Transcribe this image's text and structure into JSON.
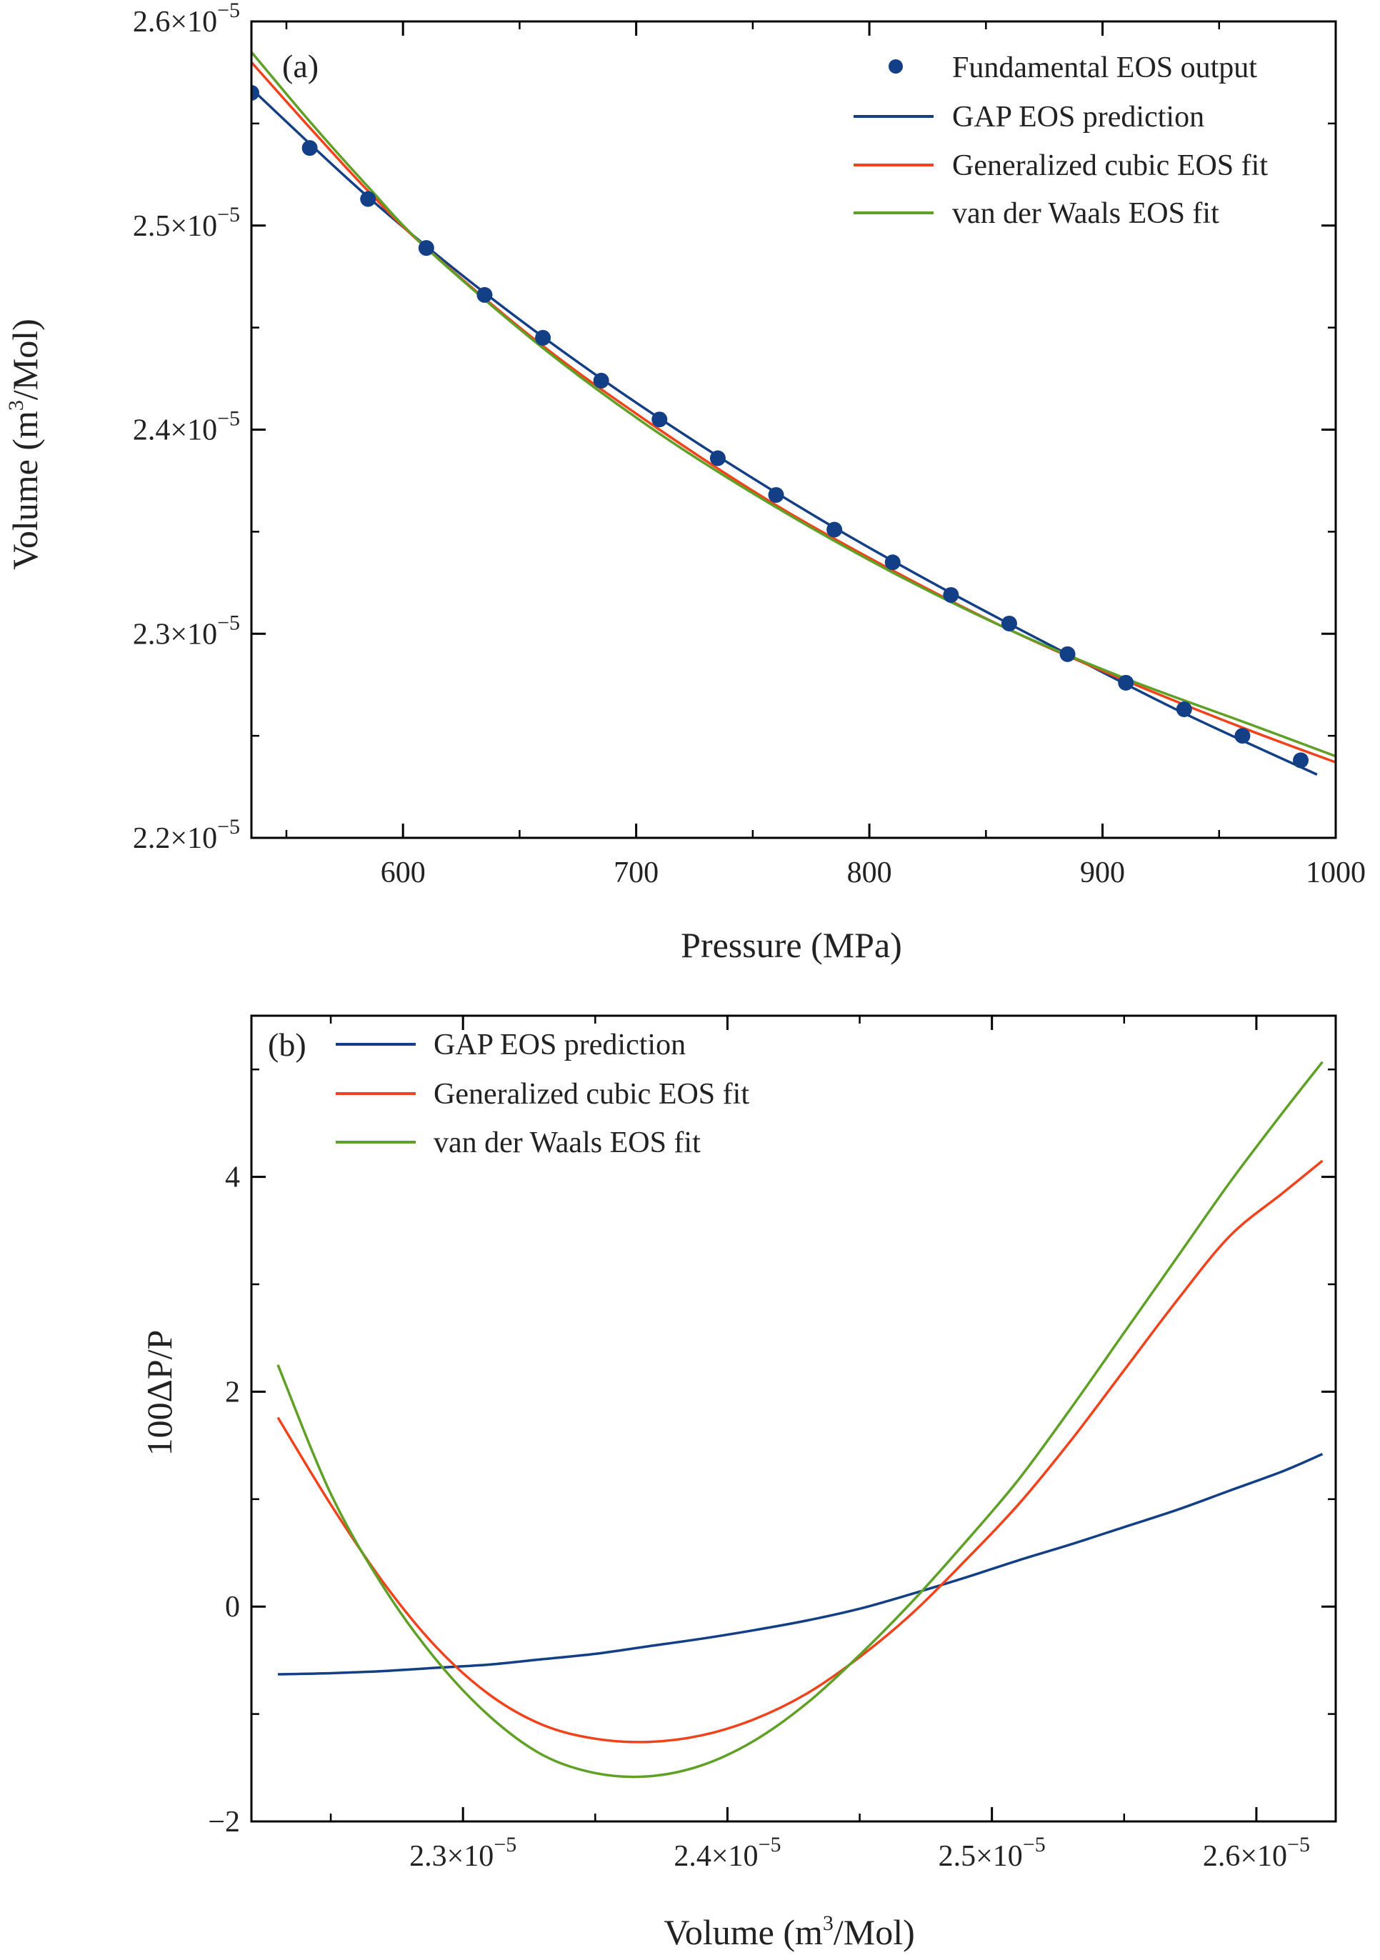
{
  "colors": {
    "gap": "#123f85",
    "cubic": "#f0431c",
    "vdw": "#5ea126",
    "points": "#123f85",
    "axis": "#000000"
  },
  "chart_data": [
    {
      "panel": "(a)",
      "type": "line",
      "xlabel": "Pressure (MPa)",
      "ylabel": {
        "prefix": "Volume (m",
        "sup": "3",
        "suffix": "/Mol)"
      },
      "xlim": [
        535,
        1000
      ],
      "ylim": [
        2.2e-05,
        2.6e-05
      ],
      "xticks": [
        {
          "value": 600,
          "label": "600"
        },
        {
          "value": 700,
          "label": "700"
        },
        {
          "value": 800,
          "label": "800"
        },
        {
          "value": 900,
          "label": "900"
        },
        {
          "value": 1000,
          "label": "1000"
        }
      ],
      "yticks": [
        {
          "value": 2.2e-05,
          "mant": "2.2×10",
          "exp": "−5"
        },
        {
          "value": 2.3e-05,
          "mant": "2.3×10",
          "exp": "−5"
        },
        {
          "value": 2.4e-05,
          "mant": "2.4×10",
          "exp": "−5"
        },
        {
          "value": 2.5e-05,
          "mant": "2.5×10",
          "exp": "−5"
        },
        {
          "value": 2.6e-05,
          "mant": "2.6×10",
          "exp": "−5"
        }
      ],
      "legend_position": "top-right",
      "scatter": {
        "name": "Fundamental EOS output",
        "x": [
          535,
          560,
          585,
          610,
          635,
          660,
          685,
          710,
          735,
          760,
          785,
          810,
          835,
          860,
          885,
          910,
          935,
          960,
          985
        ],
        "y": [
          2.565e-05,
          2.538e-05,
          2.513e-05,
          2.489e-05,
          2.466e-05,
          2.445e-05,
          2.424e-05,
          2.405e-05,
          2.386e-05,
          2.368e-05,
          2.351e-05,
          2.335e-05,
          2.319e-05,
          2.305e-05,
          2.29e-05,
          2.276e-05,
          2.263e-05,
          2.25e-05,
          2.238e-05
        ]
      },
      "series": [
        {
          "name": "GAP EOS prediction",
          "x": [
            535,
            585,
            635,
            685,
            735,
            785,
            835,
            885,
            935,
            992
          ],
          "y": [
            2.567e-05,
            2.514e-05,
            2.467e-05,
            2.425e-05,
            2.387e-05,
            2.352e-05,
            2.32e-05,
            2.29e-05,
            2.261e-05,
            2.231e-05
          ]
        },
        {
          "name": "Generalized cubic EOS fit",
          "x": [
            535,
            560,
            585,
            610,
            660,
            710,
            760,
            810,
            860,
            910,
            960,
            1000
          ],
          "y": [
            2.58e-05,
            2.548e-05,
            2.517e-05,
            2.489e-05,
            2.441e-05,
            2.4e-05,
            2.363e-05,
            2.331e-05,
            2.302e-05,
            2.277e-05,
            2.254e-05,
            2.237e-05
          ]
        },
        {
          "name": "van der Waals EOS fit",
          "x": [
            535,
            560,
            585,
            610,
            660,
            710,
            760,
            810,
            860,
            910,
            960,
            1000
          ],
          "y": [
            2.585e-05,
            2.551e-05,
            2.519e-05,
            2.489e-05,
            2.44e-05,
            2.398e-05,
            2.362e-05,
            2.33e-05,
            2.302e-05,
            2.278e-05,
            2.257e-05,
            2.24e-05
          ]
        }
      ]
    },
    {
      "panel": "(b)",
      "type": "line",
      "xlabel": {
        "prefix": "Volume (m",
        "sup": "3",
        "suffix": "/Mol)"
      },
      "ylabel": "100ΔP/P",
      "xlim": [
        2.22e-05,
        2.63e-05
      ],
      "ylim": [
        -2,
        5.5
      ],
      "xticks": [
        {
          "value": 2.3e-05,
          "mant": "2.3×10",
          "exp": "−5"
        },
        {
          "value": 2.4e-05,
          "mant": "2.4×10",
          "exp": "−5"
        },
        {
          "value": 2.5e-05,
          "mant": "2.5×10",
          "exp": "−5"
        },
        {
          "value": 2.6e-05,
          "mant": "2.6×10",
          "exp": "−5"
        }
      ],
      "yticks": [
        {
          "value": -2,
          "label": "−2"
        },
        {
          "value": 0,
          "label": "0"
        },
        {
          "value": 2,
          "label": "2"
        },
        {
          "value": 4,
          "label": "4"
        }
      ],
      "legend_position": "top-left",
      "series": [
        {
          "name": "GAP EOS prediction",
          "x": [
            2.23e-05,
            2.25e-05,
            2.27e-05,
            2.29e-05,
            2.31e-05,
            2.33e-05,
            2.35e-05,
            2.37e-05,
            2.39e-05,
            2.41e-05,
            2.43e-05,
            2.45e-05,
            2.47e-05,
            2.49e-05,
            2.51e-05,
            2.53e-05,
            2.55e-05,
            2.57e-05,
            2.59e-05,
            2.61e-05,
            2.625e-05
          ],
          "y": [
            -0.63,
            -0.62,
            -0.6,
            -0.57,
            -0.54,
            -0.49,
            -0.44,
            -0.37,
            -0.3,
            -0.22,
            -0.13,
            -0.02,
            0.12,
            0.27,
            0.43,
            0.58,
            0.74,
            0.9,
            1.08,
            1.26,
            1.42
          ]
        },
        {
          "name": "Generalized cubic EOS fit",
          "x": [
            2.23e-05,
            2.25e-05,
            2.27e-05,
            2.29e-05,
            2.31e-05,
            2.33e-05,
            2.35e-05,
            2.37e-05,
            2.39e-05,
            2.41e-05,
            2.43e-05,
            2.45e-05,
            2.47e-05,
            2.49e-05,
            2.51e-05,
            2.53e-05,
            2.55e-05,
            2.57e-05,
            2.59e-05,
            2.61e-05,
            2.625e-05
          ],
          "y": [
            1.76,
            0.95,
            0.22,
            -0.38,
            -0.82,
            -1.1,
            -1.23,
            -1.26,
            -1.2,
            -1.05,
            -0.81,
            -0.47,
            -0.06,
            0.43,
            0.95,
            1.55,
            2.2,
            2.85,
            3.45,
            3.85,
            4.15
          ]
        },
        {
          "name": "van der Waals EOS fit",
          "x": [
            2.23e-05,
            2.25e-05,
            2.27e-05,
            2.29e-05,
            2.31e-05,
            2.33e-05,
            2.35e-05,
            2.37e-05,
            2.39e-05,
            2.41e-05,
            2.43e-05,
            2.45e-05,
            2.47e-05,
            2.49e-05,
            2.51e-05,
            2.53e-05,
            2.55e-05,
            2.57e-05,
            2.59e-05,
            2.61e-05,
            2.625e-05
          ],
          "y": [
            2.25,
            1.05,
            0.18,
            -0.5,
            -1.02,
            -1.38,
            -1.55,
            -1.58,
            -1.48,
            -1.25,
            -0.9,
            -0.45,
            0.05,
            0.6,
            1.18,
            1.85,
            2.55,
            3.25,
            3.95,
            4.6,
            5.07
          ]
        }
      ]
    }
  ]
}
